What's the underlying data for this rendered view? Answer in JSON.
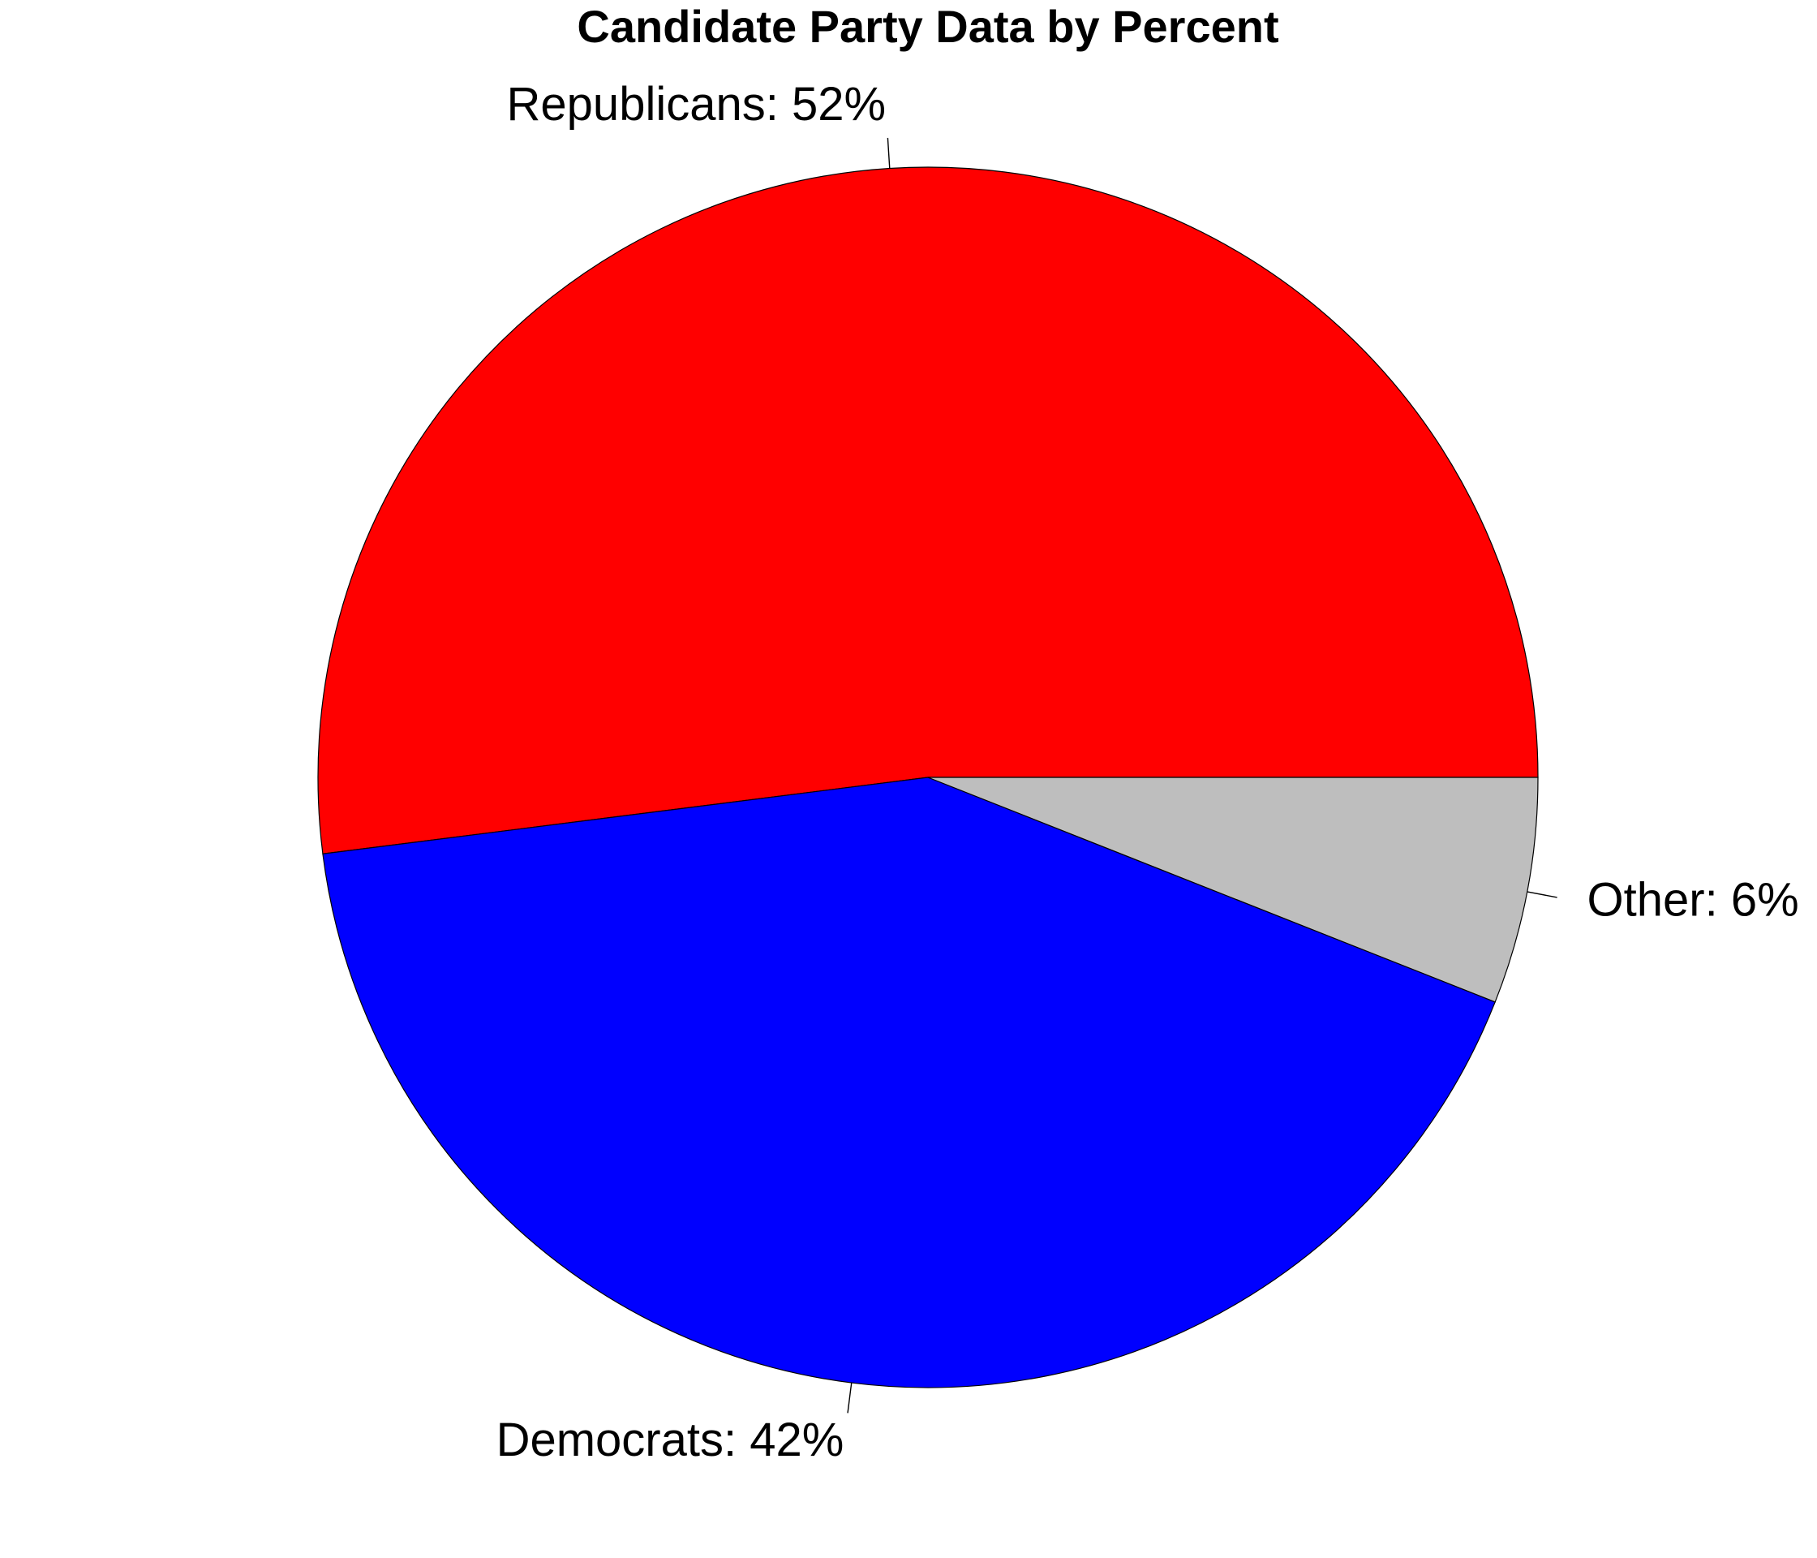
{
  "chart_data": {
    "type": "pie",
    "title": "Candidate Party Data by Percent",
    "direction": "counterclockwise",
    "start_angle_deg": 0,
    "slices": [
      {
        "label": "Republicans",
        "value": 52,
        "display": "Republicans: 52%",
        "color": "#ff0000"
      },
      {
        "label": "Democrats",
        "value": 42,
        "display": "Democrats: 42%",
        "color": "#0000ff"
      },
      {
        "label": "Other",
        "value": 6,
        "display": "Other: 6%",
        "color": "#bebebe"
      }
    ]
  }
}
